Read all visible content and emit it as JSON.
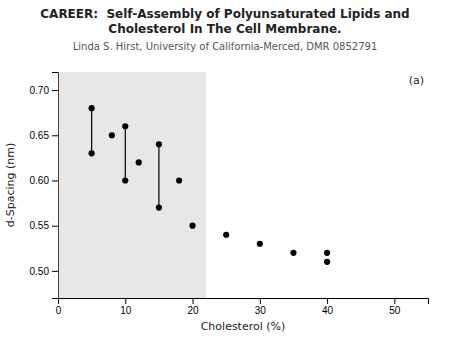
{
  "chart_data": {
    "type": "scatter",
    "title": "CAREER:  Self-Assembly of Polyunsaturated Lipids and\nCholesterol In The Cell Membrane.",
    "subtitle": "Linda S. Hirst, University of California-Merced, DMR 0852791",
    "x_label": "Cholesterol (%)",
    "y_label": "d-Spacing (nm)",
    "annotations": [
      "(a)"
    ],
    "x": [
      5,
      5,
      8,
      10,
      10,
      12,
      15,
      15,
      18,
      20,
      25,
      30,
      35,
      40,
      40
    ],
    "values": [
      0.68,
      0.63,
      0.65,
      0.66,
      0.6,
      0.62,
      0.64,
      0.57,
      0.6,
      0.55,
      0.54,
      0.53,
      0.52,
      0.52,
      0.51
    ],
    "shaded_x": [
      0,
      22
    ],
    "connect_x": [
      5,
      10,
      15
    ],
    "color": "black",
    "marker": "circle",
    "xlim": [
      0,
      55
    ],
    "xticks": [
      0,
      10,
      20,
      30,
      40,
      50
    ],
    "ylim": [
      0.47,
      0.72
    ],
    "yticks": [
      {
        "value": 0.5,
        "label": "0.50"
      },
      {
        "value": 0.55,
        "label": "0.55"
      },
      {
        "value": 0.6,
        "label": "0.60"
      },
      {
        "value": 0.65,
        "label": "0.65"
      },
      {
        "value": 0.7,
        "label": "0.70"
      }
    ],
    "grid": false
  }
}
